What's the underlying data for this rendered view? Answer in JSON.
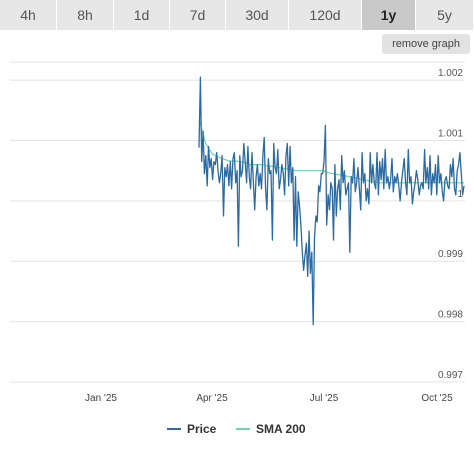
{
  "tabs": [
    {
      "label": "4h"
    },
    {
      "label": "8h"
    },
    {
      "label": "1d"
    },
    {
      "label": "7d"
    },
    {
      "label": "30d"
    },
    {
      "label": "120d"
    },
    {
      "label": "1y",
      "active": true
    },
    {
      "label": "5y"
    }
  ],
  "remove_graph_label": "remove graph",
  "colors": {
    "price": "#2b6aa3",
    "sma": "#6fd6a8",
    "grid": "#e4e4e4"
  },
  "chart_data": {
    "type": "line",
    "xlabel": "",
    "ylabel": "",
    "x_ticks": [
      "Jan '25",
      "Apr '25",
      "Jul '25",
      "Oct '25"
    ],
    "y_ticks": [
      0.997,
      0.998,
      0.999,
      1,
      1.001,
      1.002
    ],
    "y_tick_labels": [
      "0.997",
      "0.998",
      "0.999",
      "1",
      "1.001",
      "1.002"
    ],
    "ylim": [
      0.997,
      1.0023
    ],
    "grid": true,
    "legend_position": "bottom",
    "series": [
      {
        "name": "Price",
        "values": [
          1.00088,
          1.00205,
          1.00065,
          1.00115,
          1.00045,
          1.00075,
          1.00025,
          1.0009,
          1.00055,
          1.0007,
          1.00035,
          1.00065,
          1.0006,
          1.0008,
          1.0005,
          1.0003,
          1.00045,
          1.00075,
          0.99975,
          1.00055,
          1.0004,
          1.0006,
          1.00025,
          1.00065,
          1.0002,
          1.0007,
          1.0008,
          1.0003,
          1.0005,
          0.99925,
          1.00075,
          1.0004,
          1.0005,
          1.00095,
          1.00065,
          1.0003,
          1.0009,
          1.0004,
          1.0002,
          1.0008,
          1.0003,
          0.99985,
          1.0004,
          1.0006,
          1.00025,
          1.00045,
          1.0002,
          1.00075,
          1.00105,
          1.0002,
          0.99985,
          1.0007,
          1.00045,
          1.0005,
          0.99935,
          1.00095,
          1.00055,
          1.00045,
          1.00085,
          1.0002,
          1.00035,
          1.0006,
          1.00045,
          1.0001,
          1.00075,
          1.00095,
          1.00025,
          1.0009,
          1.0003,
          1.00055,
          0.99935,
          1.0004,
          0.99925,
          1.00015,
          0.9999,
          0.9996,
          0.99915,
          0.99885,
          0.9991,
          0.9993,
          0.99875,
          0.9995,
          0.9988,
          0.99915,
          0.99795,
          0.9994,
          0.99975,
          0.99965,
          1.00025,
          1.00015,
          1.00045,
          1.00045,
          1.00065,
          1.00125,
          0.9996,
          1.0001,
          0.99985,
          1.0003,
          1.0002,
          0.99935,
          1.0006,
          0.99975,
          1.0002,
          1.00035,
          0.99985,
          1.00075,
          1.0003,
          1.0005,
          1.0001,
          1.0002,
          1.0003,
          0.99915,
          1.0004,
          1.0003,
          1.0007,
          1.00015,
          1.0003,
          1.00055,
          1.0002,
          0.99985,
          1.0008,
          1.0003,
          1.00045,
          1.0,
          1.0002,
          0.99995,
          1.0008,
          1.0003,
          1.0006,
          1.0003,
          1.0002,
          1.0008,
          1.0001,
          1.00065,
          1.00035,
          1.0007,
          1.0002,
          1.00085,
          1.0003,
          1.0004,
          1.0002,
          1.00035,
          1.0007,
          1.00015,
          1.0004,
          1.0003,
          1.00045,
          1.00025,
          1.0,
          1.0003,
          1.0005,
          1.0007,
          1.0003,
          1.0001,
          1.00085,
          1.0003,
          1.0004,
          0.99995,
          1.00015,
          1.0003,
          1.0005,
          1.00035,
          1.0001,
          1.00025,
          1.0003,
          1.0002,
          1.00085,
          1.0003,
          1.00055,
          1.0002,
          1.00075,
          1.0001,
          1.00045,
          1.0003,
          1.0006,
          1.0001,
          1.00075,
          1.0003,
          1.00045,
          1.00015,
          1.0,
          1.00035,
          1.0004,
          1.00025,
          1.0002,
          1.0006,
          1.0004,
          1.0007,
          1.0002,
          1.0001,
          1.0005,
          1.0006,
          1.0008,
          1.00045,
          1.0001,
          1.00025
        ]
      },
      {
        "name": "SMA 200",
        "values": [
          1.00135,
          1.00115,
          1.00095,
          1.00085,
          1.00078,
          1.00075,
          1.00072,
          1.0007,
          1.00068,
          1.00066,
          1.00066,
          1.00066,
          1.00065,
          1.00064,
          1.00063,
          1.0006,
          1.0006,
          1.0006,
          1.0006,
          1.0006,
          1.00058,
          1.00058,
          1.00057,
          1.00056,
          1.00055,
          1.00054,
          1.00053,
          1.00052,
          1.00051,
          1.0005,
          1.0005,
          1.0005,
          1.0005,
          1.0005,
          1.0005,
          1.0005,
          1.0005,
          1.0005,
          1.00048,
          1.00046,
          1.00045,
          1.00044,
          1.00043,
          1.00042,
          1.00041,
          1.0004,
          1.00039,
          1.00038,
          1.00036,
          1.00035,
          1.00034,
          1.00033,
          1.00032,
          1.00031,
          1.0003,
          1.0003,
          1.0003,
          1.0003,
          1.0003,
          1.0003,
          1.0003,
          1.0003,
          1.0003,
          1.0003,
          1.0003,
          1.0003,
          1.0003,
          1.0003,
          1.0003,
          1.0003,
          1.0003,
          1.0003,
          1.0003,
          1.0003,
          1.0003,
          1.0003,
          1.0003,
          1.0003,
          1.0003,
          1.0003
        ]
      }
    ]
  }
}
